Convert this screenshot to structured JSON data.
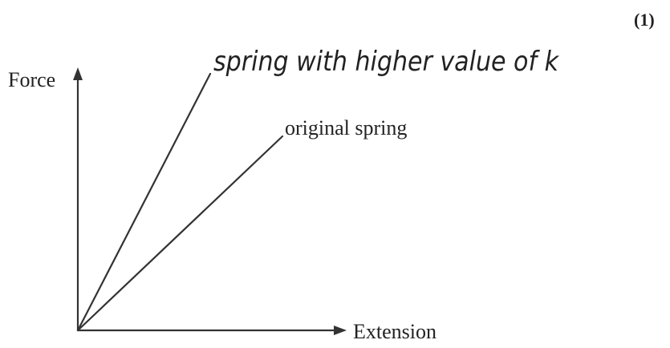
{
  "marks": "(1)",
  "axes": {
    "y_label": "Force",
    "x_label": "Extension"
  },
  "lines": [
    {
      "label": "spring with higher value of k"
    },
    {
      "label": "original spring"
    }
  ]
}
